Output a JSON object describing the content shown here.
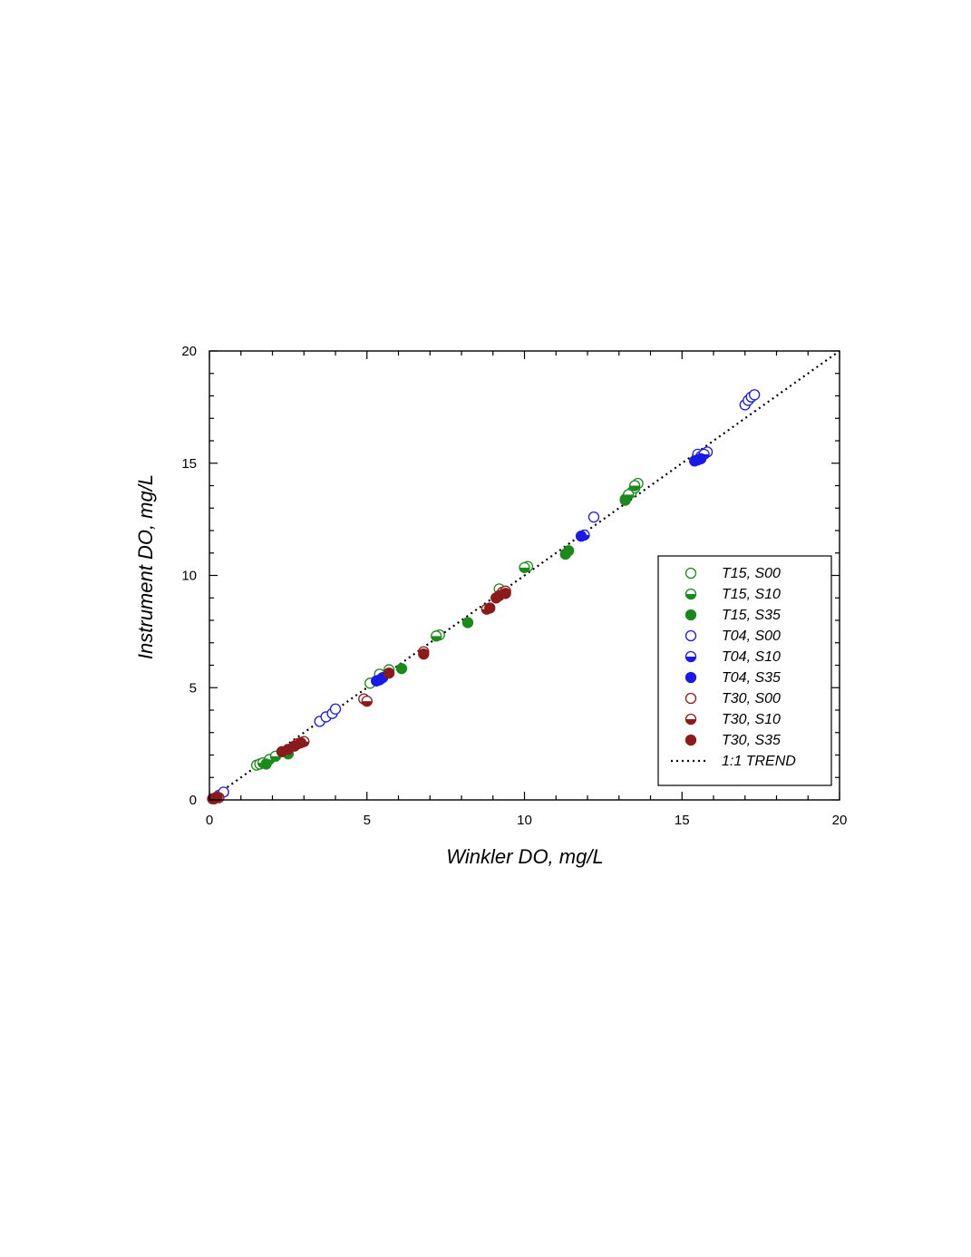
{
  "chart_data": {
    "type": "scatter",
    "title": "",
    "xlabel": "Winkler DO, mg/L",
    "ylabel": "Instrument DO, mg/L",
    "xlim": [
      0,
      20
    ],
    "ylim": [
      0,
      20
    ],
    "xticks": [
      "0",
      "5",
      "10",
      "15",
      "20"
    ],
    "yticks": [
      "0",
      "5",
      "10",
      "15",
      "20"
    ],
    "grid": false,
    "legend_position": "bottom-right",
    "series": [
      {
        "name": "T15, S00",
        "color": "#1a8a1a",
        "fill": "open",
        "points": [
          [
            1.5,
            1.55
          ],
          [
            1.6,
            1.6
          ],
          [
            5.1,
            5.2
          ],
          [
            5.4,
            5.6
          ],
          [
            5.7,
            5.8
          ],
          [
            7.3,
            7.35
          ],
          [
            9.2,
            9.4
          ],
          [
            10.1,
            10.4
          ],
          [
            13.2,
            13.4
          ],
          [
            13.4,
            13.7
          ],
          [
            13.5,
            13.9
          ],
          [
            13.6,
            14.1
          ]
        ]
      },
      {
        "name": "T15, S10",
        "color": "#1a8a1a",
        "fill": "half",
        "points": [
          [
            1.7,
            1.65
          ],
          [
            1.9,
            1.8
          ],
          [
            2.1,
            1.95
          ],
          [
            7.2,
            7.3
          ],
          [
            10.0,
            10.35
          ],
          [
            13.3,
            13.6
          ],
          [
            13.5,
            14.0
          ]
        ]
      },
      {
        "name": "T15, S35",
        "color": "#1a8a1a",
        "fill": "full",
        "points": [
          [
            1.8,
            1.6
          ],
          [
            2.5,
            2.05
          ],
          [
            6.1,
            5.85
          ],
          [
            8.2,
            7.9
          ],
          [
            11.3,
            10.95
          ],
          [
            11.4,
            11.1
          ],
          [
            13.2,
            13.35
          ]
        ]
      },
      {
        "name": "T04, S00",
        "color": "#1a1ae6",
        "fill": "open",
        "points": [
          [
            0.3,
            0.2
          ],
          [
            0.45,
            0.35
          ],
          [
            3.5,
            3.5
          ],
          [
            3.7,
            3.7
          ],
          [
            3.9,
            3.85
          ],
          [
            4.0,
            4.05
          ],
          [
            12.2,
            12.6
          ],
          [
            15.5,
            15.4
          ],
          [
            15.8,
            15.5
          ],
          [
            17.0,
            17.6
          ],
          [
            17.1,
            17.8
          ],
          [
            17.2,
            17.95
          ],
          [
            17.3,
            18.05
          ]
        ]
      },
      {
        "name": "T04, S10",
        "color": "#1a1ae6",
        "fill": "half",
        "points": [
          [
            5.4,
            5.35
          ],
          [
            11.9,
            11.8
          ],
          [
            15.6,
            15.3
          ],
          [
            15.7,
            15.4
          ]
        ]
      },
      {
        "name": "T04, S35",
        "color": "#1a1ae6",
        "fill": "full",
        "points": [
          [
            5.3,
            5.3
          ],
          [
            5.5,
            5.45
          ],
          [
            11.8,
            11.75
          ],
          [
            15.4,
            15.1
          ],
          [
            15.5,
            15.15
          ],
          [
            15.6,
            15.2
          ]
        ]
      },
      {
        "name": "T30, S00",
        "color": "#8b1a1a",
        "fill": "open",
        "points": [
          [
            0.15,
            0.05
          ],
          [
            0.3,
            0.1
          ],
          [
            2.8,
            2.5
          ],
          [
            4.9,
            4.5
          ],
          [
            9.3,
            9.25
          ]
        ]
      },
      {
        "name": "T30, S10",
        "color": "#8b1a1a",
        "fill": "half",
        "points": [
          [
            0.2,
            0.1
          ],
          [
            3.0,
            2.6
          ],
          [
            5.0,
            4.4
          ],
          [
            6.8,
            6.6
          ],
          [
            8.8,
            8.5
          ],
          [
            9.4,
            9.3
          ]
        ]
      },
      {
        "name": "T30, S35",
        "color": "#8b1a1a",
        "fill": "full",
        "points": [
          [
            0.1,
            0.05
          ],
          [
            0.25,
            0.12
          ],
          [
            2.3,
            2.15
          ],
          [
            2.5,
            2.25
          ],
          [
            2.7,
            2.4
          ],
          [
            2.9,
            2.55
          ],
          [
            5.7,
            5.65
          ],
          [
            6.8,
            6.5
          ],
          [
            8.9,
            8.55
          ],
          [
            9.1,
            9.0
          ],
          [
            9.2,
            9.1
          ],
          [
            9.4,
            9.2
          ]
        ]
      }
    ],
    "trend": {
      "name": "1:1 TREND",
      "style": "dotted",
      "color": "#000000",
      "points": [
        [
          0,
          0
        ],
        [
          20,
          20
        ]
      ]
    }
  }
}
